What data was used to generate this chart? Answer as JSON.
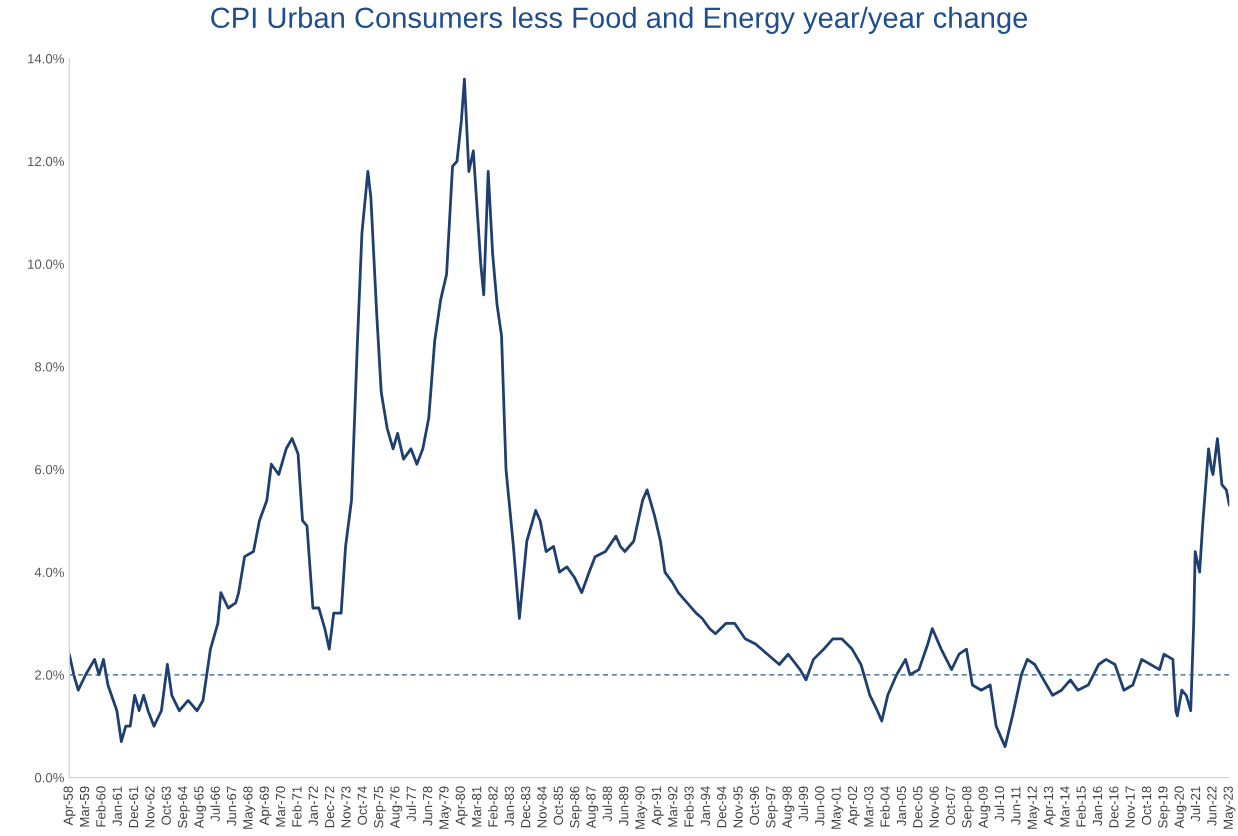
{
  "chart_data": {
    "type": "line",
    "title": "CPI Urban Consumers less Food and Energy year/year change",
    "x": [
      "1958-04",
      "1958-07",
      "1958-10",
      "1959-03",
      "1959-09",
      "1959-12",
      "1960-03",
      "1960-06",
      "1960-12",
      "1961-03",
      "1961-06",
      "1961-09",
      "1961-12",
      "1962-03",
      "1962-06",
      "1962-09",
      "1963-01",
      "1963-06",
      "1963-10",
      "1964-01",
      "1964-06",
      "1964-12",
      "1965-06",
      "1965-10",
      "1966-03",
      "1966-08",
      "1966-10",
      "1967-03",
      "1967-08",
      "1967-10",
      "1968-02",
      "1968-08",
      "1968-12",
      "1969-05",
      "1969-08",
      "1970-01",
      "1970-06",
      "1970-10",
      "1971-02",
      "1971-05",
      "1971-08",
      "1971-12",
      "1972-04",
      "1972-08",
      "1972-11",
      "1973-02",
      "1973-07",
      "1973-10",
      "1974-02",
      "1974-06",
      "1974-09",
      "1975-01",
      "1975-03",
      "1975-07",
      "1975-10",
      "1976-02",
      "1976-06",
      "1976-09",
      "1977-01",
      "1977-06",
      "1977-10",
      "1978-02",
      "1978-06",
      "1978-10",
      "1979-02",
      "1979-06",
      "1979-10",
      "1980-01",
      "1980-04",
      "1980-06",
      "1980-09",
      "1980-12",
      "1981-05",
      "1981-07",
      "1981-10",
      "1982-01",
      "1982-04",
      "1982-07",
      "1982-10",
      "1983-03",
      "1983-07",
      "1983-12",
      "1984-06",
      "1984-09",
      "1985-01",
      "1985-06",
      "1985-10",
      "1986-03",
      "1986-08",
      "1987-01",
      "1987-06",
      "1987-10",
      "1988-05",
      "1988-12",
      "1989-03",
      "1989-06",
      "1989-12",
      "1990-06",
      "1990-09",
      "1991-02",
      "1991-06",
      "1991-09",
      "1992-02",
      "1992-06",
      "1992-12",
      "1993-06",
      "1993-10",
      "1994-03",
      "1994-07",
      "1995-02",
      "1995-08",
      "1996-03",
      "1996-10",
      "1997-06",
      "1998-02",
      "1998-08",
      "1999-04",
      "1999-08",
      "2000-01",
      "2000-08",
      "2001-02",
      "2001-08",
      "2002-03",
      "2002-09",
      "2003-03",
      "2003-08",
      "2003-11",
      "2004-03",
      "2004-09",
      "2005-03",
      "2005-06",
      "2005-12",
      "2006-06",
      "2006-09",
      "2007-03",
      "2007-10",
      "2008-03",
      "2008-08",
      "2008-12",
      "2009-06",
      "2009-12",
      "2010-04",
      "2010-10",
      "2011-03",
      "2011-09",
      "2012-01",
      "2012-06",
      "2012-12",
      "2013-06",
      "2013-12",
      "2014-06",
      "2014-11",
      "2015-06",
      "2016-01",
      "2016-06",
      "2016-12",
      "2017-06",
      "2017-12",
      "2018-06",
      "2018-12",
      "2019-06",
      "2019-09",
      "2020-03",
      "2020-05",
      "2020-06",
      "2020-09",
      "2020-12",
      "2021-03",
      "2021-05",
      "2021-06",
      "2021-09",
      "2021-11",
      "2022-03",
      "2022-05",
      "2022-06",
      "2022-09",
      "2022-12",
      "2023-03",
      "2023-05"
    ],
    "series": [
      {
        "color": "#1f3f6e",
        "values": [
          2.4,
          2.0,
          1.7,
          2.0,
          2.3,
          2.0,
          2.3,
          1.8,
          1.3,
          0.7,
          1.0,
          1.0,
          1.6,
          1.3,
          1.6,
          1.3,
          1.0,
          1.3,
          2.2,
          1.6,
          1.3,
          1.5,
          1.3,
          1.5,
          2.5,
          3.0,
          3.6,
          3.3,
          3.4,
          3.6,
          4.3,
          4.4,
          5.0,
          5.4,
          6.1,
          5.9,
          6.4,
          6.6,
          6.3,
          5.0,
          4.9,
          3.3,
          3.3,
          2.9,
          2.5,
          3.2,
          3.2,
          4.5,
          5.4,
          8.5,
          10.6,
          11.8,
          11.3,
          9.0,
          7.5,
          6.8,
          6.4,
          6.7,
          6.2,
          6.4,
          6.1,
          6.4,
          7.0,
          8.5,
          9.3,
          9.8,
          11.9,
          12.0,
          12.8,
          13.6,
          11.8,
          12.2,
          10.0,
          9.4,
          11.8,
          10.2,
          9.2,
          8.6,
          6.0,
          4.5,
          3.1,
          4.6,
          5.2,
          5.0,
          4.4,
          4.5,
          4.0,
          4.1,
          3.9,
          3.6,
          4.0,
          4.3,
          4.4,
          4.7,
          4.5,
          4.4,
          4.6,
          5.4,
          5.6,
          5.1,
          4.6,
          4.0,
          3.8,
          3.6,
          3.4,
          3.2,
          3.1,
          2.9,
          2.8,
          3.0,
          3.0,
          2.7,
          2.6,
          2.4,
          2.2,
          2.4,
          2.1,
          1.9,
          2.3,
          2.5,
          2.7,
          2.7,
          2.5,
          2.2,
          1.6,
          1.3,
          1.1,
          1.6,
          2.0,
          2.3,
          2.0,
          2.1,
          2.6,
          2.9,
          2.5,
          2.1,
          2.4,
          2.5,
          1.8,
          1.7,
          1.8,
          1.0,
          0.6,
          1.2,
          2.0,
          2.3,
          2.2,
          1.9,
          1.6,
          1.7,
          1.9,
          1.7,
          1.8,
          2.2,
          2.3,
          2.2,
          1.7,
          1.8,
          2.3,
          2.2,
          2.1,
          2.4,
          2.3,
          1.3,
          1.2,
          1.7,
          1.6,
          1.3,
          3.0,
          4.4,
          4.0,
          4.9,
          6.4,
          6.0,
          5.9,
          6.6,
          5.7,
          5.6,
          5.3
        ]
      }
    ],
    "ylim": [
      0,
      14
    ],
    "yticks": [
      {
        "value": 0,
        "label": "0.0%"
      },
      {
        "value": 2,
        "label": "2.0%"
      },
      {
        "value": 4,
        "label": "4.0%"
      },
      {
        "value": 6,
        "label": "6.0%"
      },
      {
        "value": 8,
        "label": "8.0%"
      },
      {
        "value": 10,
        "label": "10.0%"
      },
      {
        "value": 12,
        "label": "12.0%"
      },
      {
        "value": 14,
        "label": "14.0%"
      }
    ],
    "xlim": [
      "1958-04",
      "2023-05"
    ],
    "xticks": [
      {
        "value": "1958-04",
        "label": "Apr-58"
      },
      {
        "value": "1959-03",
        "label": "Mar-59"
      },
      {
        "value": "1960-02",
        "label": "Feb-60"
      },
      {
        "value": "1961-01",
        "label": "Jan-61"
      },
      {
        "value": "1961-12",
        "label": "Dec-61"
      },
      {
        "value": "1962-11",
        "label": "Nov-62"
      },
      {
        "value": "1963-10",
        "label": "Oct-63"
      },
      {
        "value": "1964-09",
        "label": "Sep-64"
      },
      {
        "value": "1965-08",
        "label": "Aug-65"
      },
      {
        "value": "1966-07",
        "label": "Jul-66"
      },
      {
        "value": "1967-06",
        "label": "Jun-67"
      },
      {
        "value": "1968-05",
        "label": "May-68"
      },
      {
        "value": "1969-04",
        "label": "Apr-69"
      },
      {
        "value": "1970-03",
        "label": "Mar-70"
      },
      {
        "value": "1971-02",
        "label": "Feb-71"
      },
      {
        "value": "1972-01",
        "label": "Jan-72"
      },
      {
        "value": "1972-12",
        "label": "Dec-72"
      },
      {
        "value": "1973-11",
        "label": "Nov-73"
      },
      {
        "value": "1974-10",
        "label": "Oct-74"
      },
      {
        "value": "1975-09",
        "label": "Sep-75"
      },
      {
        "value": "1976-08",
        "label": "Aug-76"
      },
      {
        "value": "1977-07",
        "label": "Jul-77"
      },
      {
        "value": "1978-06",
        "label": "Jun-78"
      },
      {
        "value": "1979-05",
        "label": "May-79"
      },
      {
        "value": "1980-04",
        "label": "Apr-80"
      },
      {
        "value": "1981-03",
        "label": "Mar-81"
      },
      {
        "value": "1982-02",
        "label": "Feb-82"
      },
      {
        "value": "1983-01",
        "label": "Jan-83"
      },
      {
        "value": "1983-12",
        "label": "Dec-83"
      },
      {
        "value": "1984-11",
        "label": "Nov-84"
      },
      {
        "value": "1985-10",
        "label": "Oct-85"
      },
      {
        "value": "1986-09",
        "label": "Sep-86"
      },
      {
        "value": "1987-08",
        "label": "Aug-87"
      },
      {
        "value": "1988-07",
        "label": "Jul-88"
      },
      {
        "value": "1989-06",
        "label": "Jun-89"
      },
      {
        "value": "1990-05",
        "label": "May-90"
      },
      {
        "value": "1991-04",
        "label": "Apr-91"
      },
      {
        "value": "1992-03",
        "label": "Mar-92"
      },
      {
        "value": "1993-02",
        "label": "Feb-93"
      },
      {
        "value": "1994-01",
        "label": "Jan-94"
      },
      {
        "value": "1994-12",
        "label": "Dec-94"
      },
      {
        "value": "1995-11",
        "label": "Nov-95"
      },
      {
        "value": "1996-10",
        "label": "Oct-96"
      },
      {
        "value": "1997-09",
        "label": "Sep-97"
      },
      {
        "value": "1998-08",
        "label": "Aug-98"
      },
      {
        "value": "1999-07",
        "label": "Jul-99"
      },
      {
        "value": "2000-06",
        "label": "Jun-00"
      },
      {
        "value": "2001-05",
        "label": "May-01"
      },
      {
        "value": "2002-04",
        "label": "Apr-02"
      },
      {
        "value": "2003-03",
        "label": "Mar-03"
      },
      {
        "value": "2004-02",
        "label": "Feb-04"
      },
      {
        "value": "2005-01",
        "label": "Jan-05"
      },
      {
        "value": "2005-12",
        "label": "Dec-05"
      },
      {
        "value": "2006-11",
        "label": "Nov-06"
      },
      {
        "value": "2007-10",
        "label": "Oct-07"
      },
      {
        "value": "2008-09",
        "label": "Sep-08"
      },
      {
        "value": "2009-08",
        "label": "Aug-09"
      },
      {
        "value": "2010-07",
        "label": "Jul-10"
      },
      {
        "value": "2011-06",
        "label": "Jun-11"
      },
      {
        "value": "2012-05",
        "label": "May-12"
      },
      {
        "value": "2013-04",
        "label": "Apr-13"
      },
      {
        "value": "2014-03",
        "label": "Mar-14"
      },
      {
        "value": "2015-02",
        "label": "Feb-15"
      },
      {
        "value": "2016-01",
        "label": "Jan-16"
      },
      {
        "value": "2016-12",
        "label": "Dec-16"
      },
      {
        "value": "2017-11",
        "label": "Nov-17"
      },
      {
        "value": "2018-10",
        "label": "Oct-18"
      },
      {
        "value": "2019-09",
        "label": "Sep-19"
      },
      {
        "value": "2020-08",
        "label": "Aug-20"
      },
      {
        "value": "2021-07",
        "label": "Jul-21"
      },
      {
        "value": "2022-06",
        "label": "Jun-22"
      },
      {
        "value": "2023-05",
        "label": "May-23"
      }
    ],
    "ref_lines": [
      {
        "axis": "y",
        "value": 2,
        "color": "#2e5a8a",
        "line_style": "dashed"
      }
    ],
    "grid": false,
    "legend": false,
    "marker": "none",
    "line_style": "solid"
  }
}
